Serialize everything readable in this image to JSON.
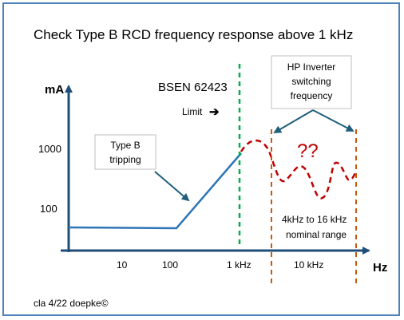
{
  "title": "Check Type B RCD frequency response above 1 kHz",
  "y_axis": {
    "unit": "mA",
    "ticks": [
      "1000",
      "100"
    ]
  },
  "x_axis": {
    "unit": "Hz",
    "ticks": [
      "10",
      "100",
      "1 kHz",
      "10 kHz"
    ]
  },
  "standard": {
    "name": "BSEN 62423",
    "limit_label": "Limit",
    "arrow": "➔"
  },
  "callouts": {
    "tripping": [
      "Type B",
      "tripping"
    ],
    "inverter": [
      "HP Inverter",
      "switching",
      "frequency"
    ]
  },
  "unknown_label": "??",
  "range_label": [
    "4kHz to 16 kHz",
    "nominal range"
  ],
  "footer": "cla 4/22 doepke©",
  "colors": {
    "frame": "#4f81bd",
    "axis": "#1f4e79",
    "curve": "#2e75b6",
    "limit_line": "#00b050",
    "unknown": "#c00000",
    "range_lines": "#c55a11"
  }
}
